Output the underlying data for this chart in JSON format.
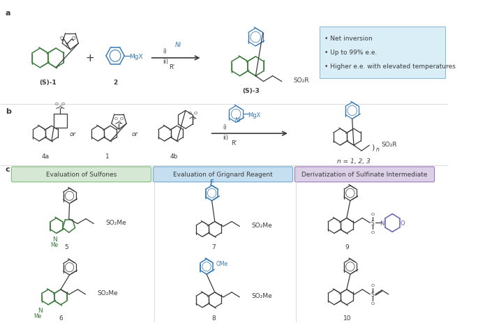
{
  "background_color": "#ffffff",
  "light_blue_box": "#daeef8",
  "light_green_box": "#d5e8d4",
  "light_blue_header": "#c5dff0",
  "light_purple_box": "#dcd0e8",
  "green_color": "#3d7a3d",
  "blue_color": "#3a7ab5",
  "purple_color": "#8060a0",
  "dark_gray": "#3a3a3a",
  "label_a": "a",
  "label_b": "b",
  "label_c": "c",
  "bullet_text": [
    "• Net inversion",
    "• Up to 99% e.e.",
    "• Higher e.e. with elevated temperatures"
  ],
  "section_c_headers": [
    "Evaluation of Sulfones",
    "Evaluation of Grignard Reagent",
    "Derivatization of Sulfinate Intermediate"
  ],
  "ni_label": "Ni",
  "mgx_label": "MgX"
}
